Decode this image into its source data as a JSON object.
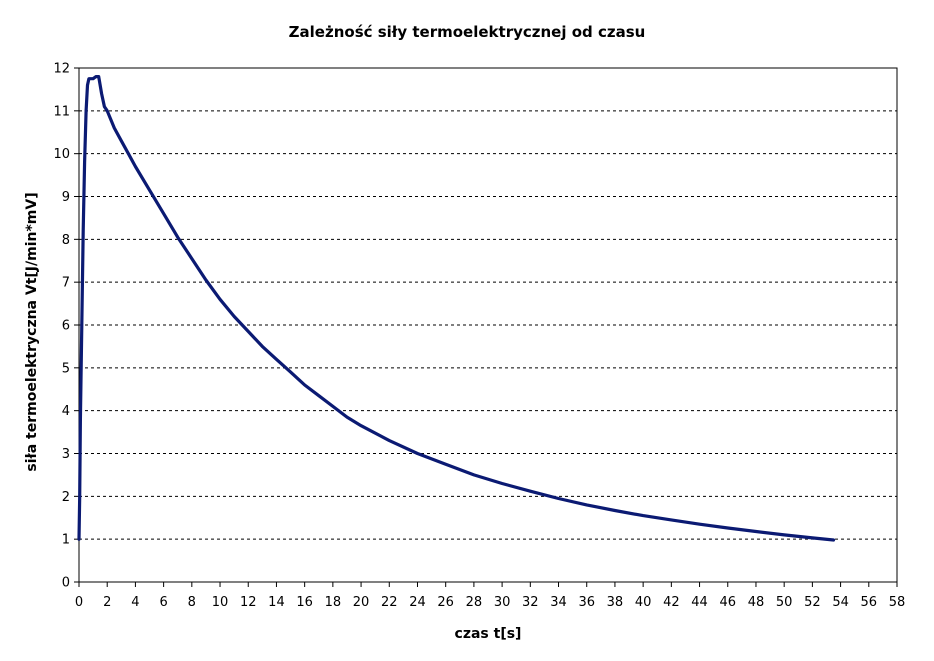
{
  "chart_data": {
    "type": "line",
    "title": "Zależność siły termoelektrycznej od czasu",
    "xlabel": "czas t[s]",
    "ylabel": "siła termoelektryczna Vt[J/min*mV]",
    "xlim": [
      0,
      58
    ],
    "ylim": [
      0,
      12
    ],
    "x_ticks": [
      0,
      2,
      4,
      6,
      8,
      10,
      12,
      14,
      16,
      18,
      20,
      22,
      24,
      26,
      28,
      30,
      32,
      34,
      36,
      38,
      40,
      42,
      44,
      46,
      48,
      50,
      52,
      54,
      56,
      58
    ],
    "y_ticks": [
      0,
      1,
      2,
      3,
      4,
      5,
      6,
      7,
      8,
      9,
      10,
      11,
      12
    ],
    "grid": {
      "horizontal": true,
      "vertical": false
    },
    "legend": "none",
    "series": [
      {
        "color": "#0b1a73",
        "x": [
          0.0,
          0.05,
          0.1,
          0.2,
          0.3,
          0.4,
          0.5,
          0.6,
          0.7,
          0.8,
          1.0,
          1.2,
          1.4,
          1.6,
          1.8,
          2.0,
          2.5,
          3.0,
          3.5,
          4.0,
          5.0,
          6.0,
          7.0,
          8.0,
          9.0,
          10.0,
          11.0,
          12.0,
          13.0,
          14.0,
          15.0,
          16.0,
          17.0,
          18.0,
          19.0,
          20.0,
          22.0,
          24.0,
          26.0,
          28.0,
          30.0,
          32.0,
          34.0,
          36.0,
          38.0,
          40.0,
          42.0,
          44.0,
          46.0,
          48.0,
          50.0,
          52.0,
          53.5
        ],
        "y": [
          1.0,
          2.0,
          3.8,
          6.0,
          8.2,
          9.8,
          11.0,
          11.6,
          11.75,
          11.75,
          11.75,
          11.8,
          11.8,
          11.4,
          11.1,
          11.0,
          10.6,
          10.3,
          10.0,
          9.7,
          9.15,
          8.6,
          8.05,
          7.55,
          7.05,
          6.6,
          6.2,
          5.85,
          5.5,
          5.2,
          4.9,
          4.6,
          4.35,
          4.1,
          3.85,
          3.65,
          3.3,
          3.0,
          2.75,
          2.5,
          2.3,
          2.12,
          1.95,
          1.8,
          1.67,
          1.55,
          1.45,
          1.35,
          1.26,
          1.18,
          1.1,
          1.03,
          0.98
        ]
      }
    ]
  }
}
